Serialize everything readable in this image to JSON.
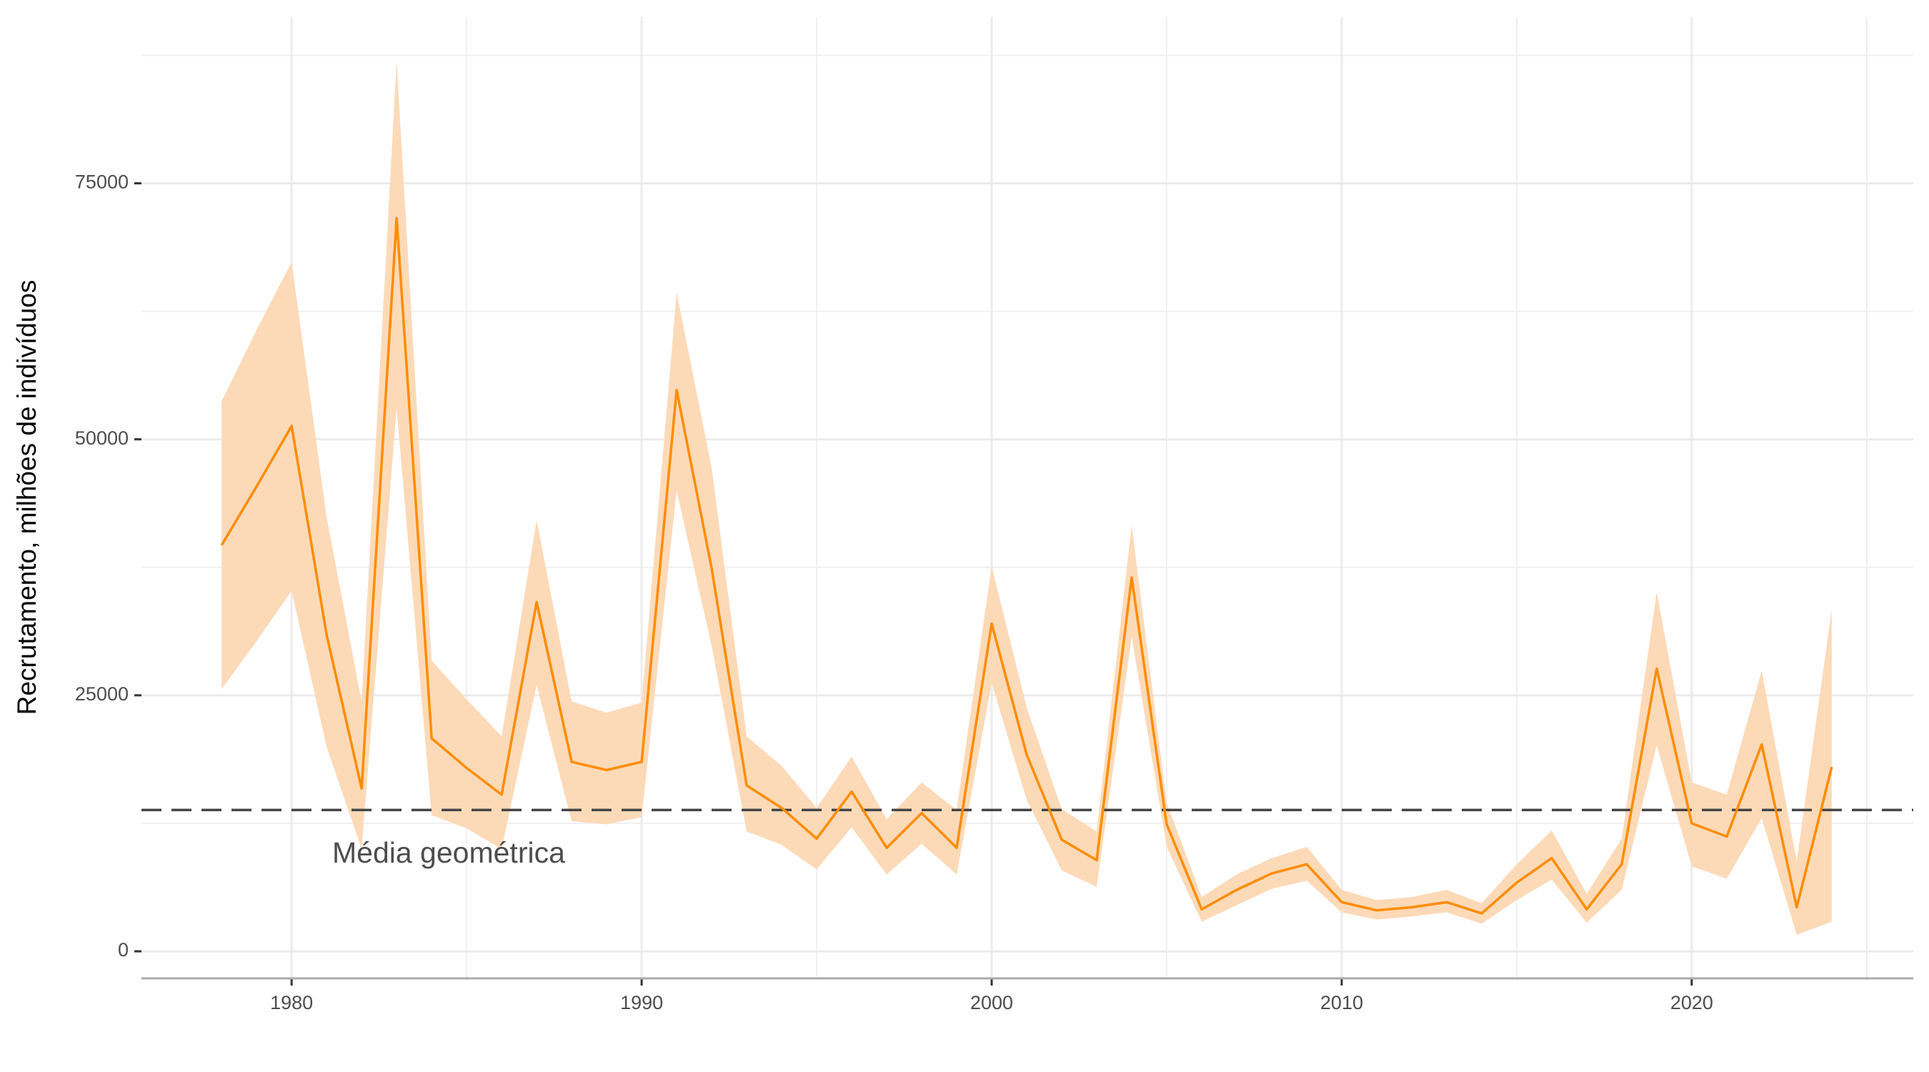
{
  "chart_data": {
    "type": "line",
    "y_label": "Recrutamento, milhões de indivíduos",
    "x": [
      1978,
      1979,
      1980,
      1981,
      1982,
      1983,
      1984,
      1985,
      1986,
      1987,
      1988,
      1989,
      1990,
      1991,
      1992,
      1993,
      1994,
      1995,
      1996,
      1997,
      1998,
      1999,
      2000,
      2001,
      2002,
      2003,
      2004,
      2005,
      2006,
      2007,
      2008,
      2009,
      2010,
      2011,
      2012,
      2013,
      2014,
      2015,
      2016,
      2017,
      2018,
      2019,
      2020,
      2021,
      2022,
      2023,
      2024
    ],
    "values": [
      39660,
      45400,
      51300,
      30900,
      15900,
      71600,
      20800,
      17900,
      15300,
      34100,
      18500,
      17700,
      18500,
      54800,
      37400,
      16200,
      14000,
      11000,
      15600,
      10100,
      13500,
      10100,
      32000,
      19200,
      10900,
      8900,
      36500,
      12400,
      4100,
      6000,
      7600,
      8500,
      4800,
      4000,
      4300,
      4800,
      3700,
      6700,
      9100,
      4100,
      8500,
      27600,
      12500,
      11200,
      20200,
      4300,
      18000
    ],
    "lower": [
      25600,
      30300,
      35200,
      19950,
      10000,
      53000,
      13300,
      12000,
      10000,
      26000,
      12700,
      12400,
      13100,
      45000,
      29800,
      11700,
      10400,
      8000,
      12100,
      7500,
      10500,
      7500,
      26200,
      14800,
      7900,
      6300,
      30700,
      10200,
      2900,
      4500,
      6100,
      6900,
      3800,
      3100,
      3400,
      3800,
      2700,
      5000,
      7000,
      2800,
      6000,
      20100,
      8300,
      7100,
      13000,
      1600,
      2900
    ],
    "upper": [
      53700,
      60700,
      67300,
      42400,
      24400,
      86900,
      28400,
      24600,
      21000,
      42100,
      24400,
      23300,
      24300,
      64300,
      47200,
      21000,
      18100,
      14000,
      19000,
      12900,
      16500,
      13800,
      37600,
      23800,
      13900,
      11700,
      41600,
      14500,
      5300,
      7500,
      9100,
      10200,
      6000,
      5000,
      5300,
      6000,
      4700,
      8500,
      11800,
      5600,
      11000,
      35100,
      16500,
      15300,
      27400,
      8800,
      33400
    ],
    "color": "#ff8c00",
    "band_color": "#fcdab8",
    "hline": {
      "value": 13800,
      "label": "Média geométrica",
      "color": "#444444"
    },
    "xlim": [
      1975.71,
      2026.33
    ],
    "ylim": [
      -2644,
      91226
    ],
    "xticks": [
      1980,
      1990,
      2000,
      2010,
      2020
    ],
    "yticks": [
      0,
      25000,
      50000,
      75000
    ],
    "grid": true
  }
}
